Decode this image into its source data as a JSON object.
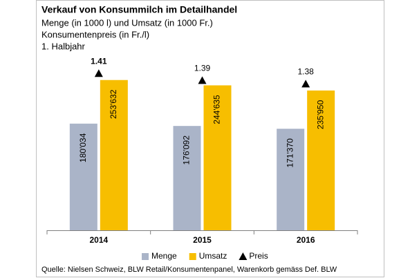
{
  "chart_data": {
    "type": "bar",
    "title": "Verkauf von Konsummilch im Detailhandel",
    "subtitle": [
      "Menge (in 1000 l) und Umsatz (in 1000 Fr.)",
      "Konsumentenpreis (in Fr./l)",
      "1. Halbjahr"
    ],
    "categories": [
      "2014",
      "2015",
      "2016"
    ],
    "series": [
      {
        "name": "Menge",
        "color": "#aab4c8",
        "values": [
          180034,
          176092,
          171370
        ],
        "value_labels": [
          "180'034",
          "176'092",
          "171'370"
        ]
      },
      {
        "name": "Umsatz",
        "color": "#f7be00",
        "values": [
          253632,
          244635,
          235950
        ],
        "value_labels": [
          "253'632",
          "244'635",
          "235'950"
        ]
      },
      {
        "name": "Preis",
        "type": "marker",
        "axis": "y2",
        "color": "#000000",
        "values": [
          1.41,
          1.39,
          1.38
        ]
      }
    ],
    "ylim": [
      0,
      300000
    ],
    "y2lim": [
      0.96,
      1.47
    ],
    "source": "Quelle: Nielsen Schweiz, BLW Retail/Konsumentenpanel, Warenkorb gemäss Def. BLW"
  }
}
